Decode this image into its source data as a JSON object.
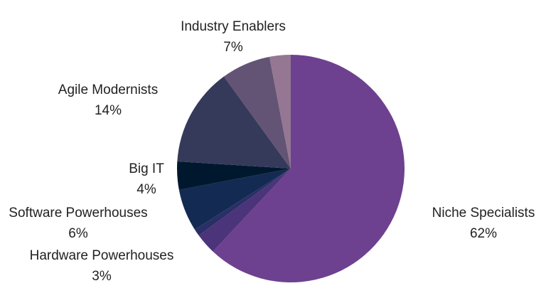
{
  "chart_data": {
    "type": "pie",
    "title": "",
    "start_angle_deg": 90,
    "direction": "clockwise",
    "slices": [
      {
        "name": "Niche Specialists",
        "value": 62,
        "label": "62%",
        "color": "#6d418f"
      },
      {
        "name": "Hardware Powerhouses",
        "value": 3,
        "label": "3%",
        "color": "#4b3479"
      },
      {
        "name": "Software Powerhouses",
        "value": 6,
        "label": "6%",
        "color": "#132a52"
      },
      {
        "name": "Big IT",
        "value": 4,
        "label": "4%",
        "color": "#00182e"
      },
      {
        "name": "Agile Modernists",
        "value": 14,
        "label": "14%",
        "color": "#353a5a"
      },
      {
        "name": "Industry Enablers",
        "value": 7,
        "label": "7%",
        "color": "#635475"
      },
      {
        "name": "",
        "value": 3,
        "label": "",
        "color": "#957793"
      }
    ],
    "extra_slices": [
      {
        "value": 1,
        "color": "#2a2f66",
        "after": "Hardware Powerhouses"
      }
    ]
  }
}
